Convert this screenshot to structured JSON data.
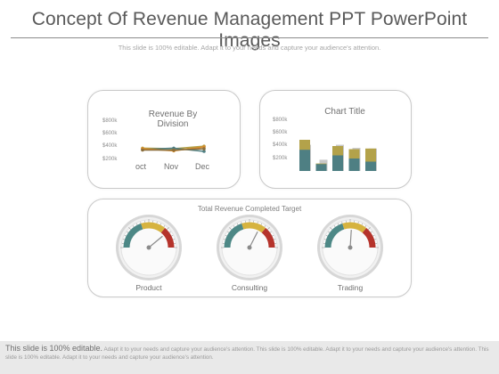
{
  "slide": {
    "title": "Concept Of Revenue Management PPT PowerPoint Images",
    "subtitle": "This slide is 100% editable. Adapt it to your needs and capture your audience's attention."
  },
  "colors": {
    "olive": "#b3a24a",
    "teal": "#4e7f83",
    "orange": "#d98b2a",
    "brown": "#8a6e3c",
    "gray_bar": "#c8c8c8",
    "gauge_red": "#b5332b",
    "gauge_yellow": "#d6b33f",
    "gauge_teal": "#4d8886"
  },
  "chart_data": [
    {
      "type": "line",
      "title": "Revenue By Division",
      "categories": [
        "oct",
        "Nov",
        "Dec"
      ],
      "y_ticks": [
        "$800k",
        "$600k",
        "$400k",
        "$200k"
      ],
      "ylim": [
        200,
        800
      ],
      "series": [
        {
          "values": [
            390,
            380,
            420
          ],
          "color": "#b3a24a"
        },
        {
          "values": [
            370,
            390,
            340
          ],
          "color": "#4e7f83"
        },
        {
          "values": [
            380,
            350,
            410
          ],
          "color": "#d98b2a"
        },
        {
          "values": [
            360,
            360,
            380
          ],
          "color": "#8a6e3c"
        }
      ]
    },
    {
      "type": "bar",
      "title": "Chart Title",
      "y_ticks": [
        "$800k",
        "$600k",
        "$400k",
        "$200k"
      ],
      "ylim": [
        200,
        800
      ],
      "groups": [
        {
          "back": 420,
          "olive": 500,
          "teal": 340
        },
        {
          "back": 180,
          "olive": 120,
          "teal": 110
        },
        {
          "back": 420,
          "olive": 400,
          "teal": 250
        },
        {
          "back": 370,
          "olive": 350,
          "teal": 200
        },
        {
          "back": 360,
          "olive": 360,
          "teal": 150
        }
      ]
    }
  ],
  "target": {
    "title": "Total Revenue Completed Target",
    "gauges": [
      {
        "label": "Product",
        "level": 0.78
      },
      {
        "label": "Consulting",
        "level": 0.65
      },
      {
        "label": "Trading",
        "level": 0.52
      }
    ]
  },
  "footer": {
    "lead": "This slide is 100% editable.",
    "text": "Adapt it to your needs and capture your audience's attention. This slide is 100% editable. Adapt it to your needs and capture your audience's attention. This slide is 100% editable. Adapt it to your needs and capture your audience's attention."
  }
}
